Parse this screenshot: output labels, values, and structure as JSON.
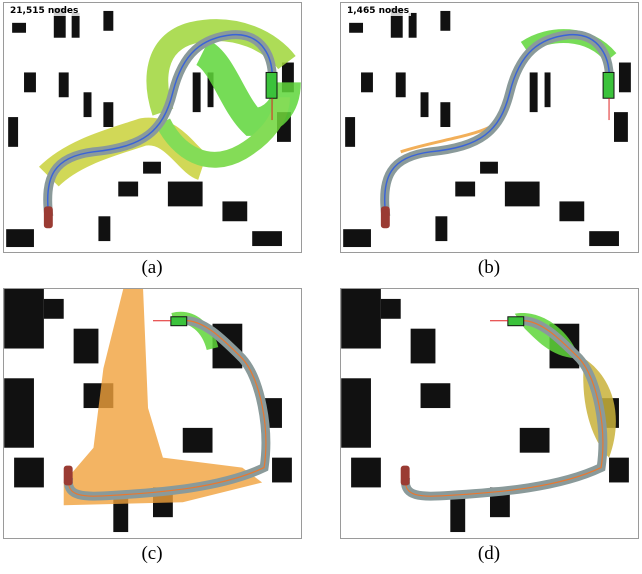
{
  "figure": {
    "colors": {
      "explored_tree_green": "#5fd63a",
      "explored_tree_yellow": "#c9d23a",
      "explored_tree_orange": "#f0a13c",
      "path_corridor": "#8a9a9a",
      "planned_path_blue": "#3a63d8",
      "start_vehicle": "#9a3b33",
      "goal_vehicle": "#3bc23b",
      "obstacles": "#111111"
    },
    "panels": [
      {
        "id": "a",
        "caption": "(a)",
        "node_label": "21,515 nodes"
      },
      {
        "id": "b",
        "caption": "(b)",
        "node_label": "1,465 nodes"
      },
      {
        "id": "c",
        "caption": "(c)",
        "node_label": ""
      },
      {
        "id": "d",
        "caption": "(d)",
        "node_label": ""
      }
    ]
  }
}
